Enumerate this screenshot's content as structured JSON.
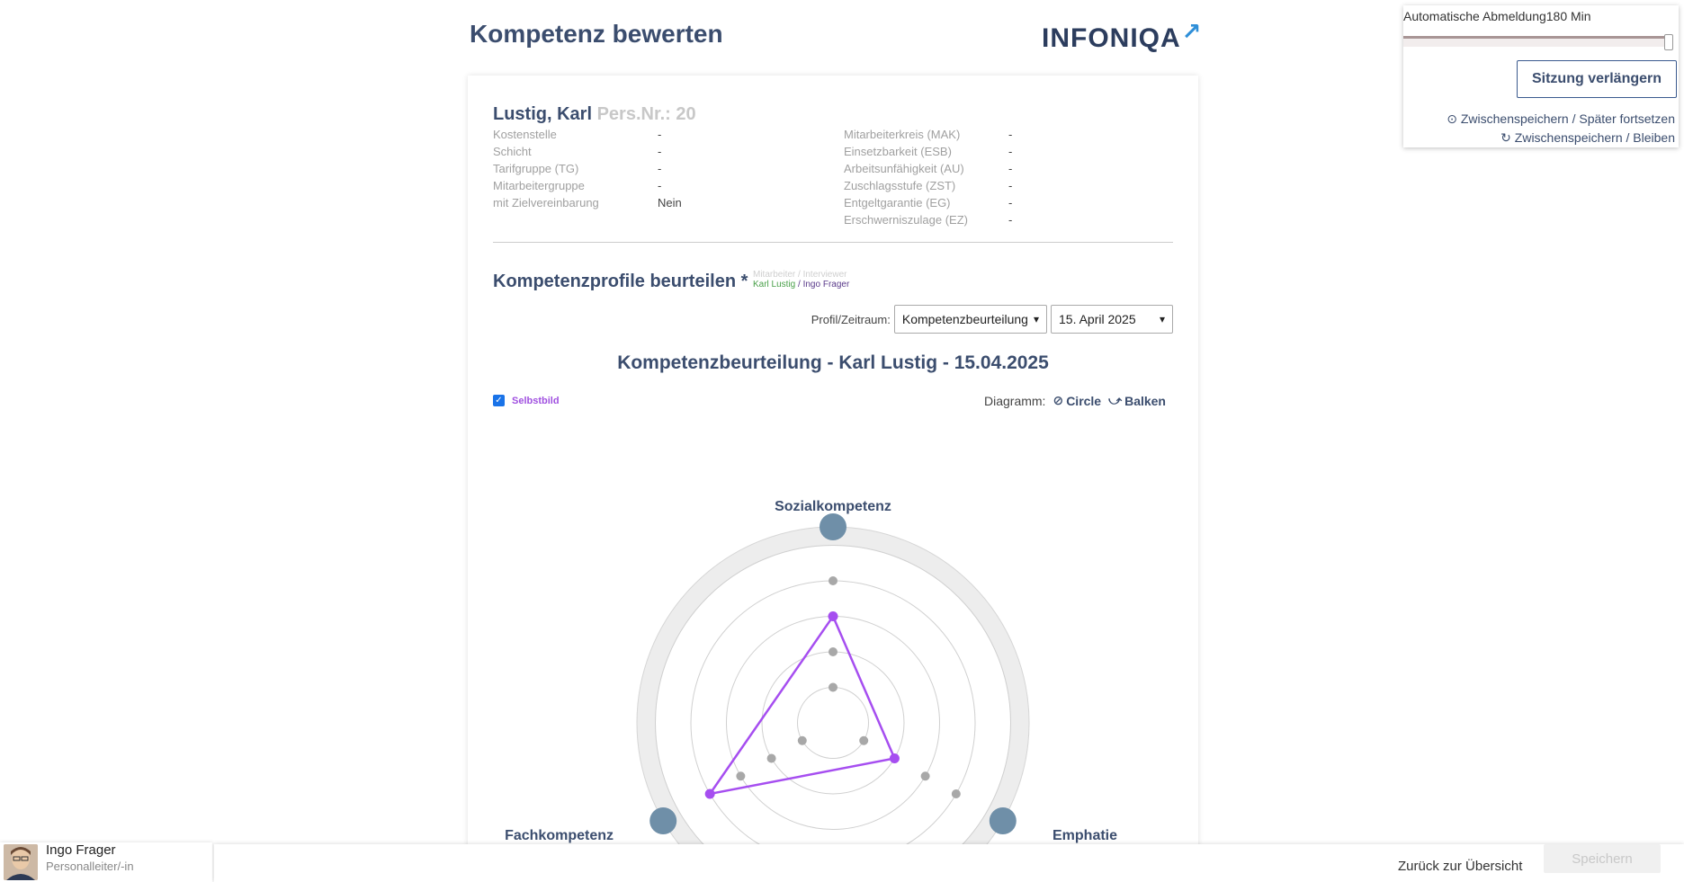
{
  "header": {
    "title": "Kompetenz bewerten",
    "logo_text": "INFONIQA",
    "logo_arrow": "↗"
  },
  "employee": {
    "name": "Lustig, Karl",
    "persnr": "Pers.Nr.: 20",
    "fields_left": [
      {
        "label": "Kostenstelle",
        "value": "-"
      },
      {
        "label": "Schicht",
        "value": "-"
      },
      {
        "label": "Tarifgruppe (TG)",
        "value": "-"
      },
      {
        "label": "Mitarbeitergruppe",
        "value": "-"
      },
      {
        "label": "mit Zielvereinbarung",
        "value": "Nein"
      }
    ],
    "fields_right": [
      {
        "label": "Mitarbeiterkreis (MAK)",
        "value": "-"
      },
      {
        "label": "Einsetzbarkeit (ESB)",
        "value": "-"
      },
      {
        "label": "Arbeitsunfähigkeit (AU)",
        "value": "-"
      },
      {
        "label": "Zuschlagsstufe (ZST)",
        "value": "-"
      },
      {
        "label": "Entgeltgarantie (EG)",
        "value": "-"
      },
      {
        "label": "Erschwerniszulage (EZ)",
        "value": "-"
      }
    ]
  },
  "profiles": {
    "title": "Kompetenzprofile beurteilen",
    "required_mark": "*",
    "legend_line1": "Mitarbeiter / Interviewer",
    "legend_employee": "Karl Lustig",
    "legend_separator": " / ",
    "legend_interviewer": "Ingo Frager",
    "profile_label": "Profil/Zeitraum:",
    "profile_select": "Kompetenzbeurteilung",
    "date_select": "15. April 2025"
  },
  "chart_header": {
    "title": "Kompetenzbeurteilung - Karl Lustig - 15.04.2025",
    "selbstbild_label": "Selbstbild",
    "selbstbild_checked": true,
    "diagramm_label": "Diagramm:",
    "option_circle": "Circle",
    "option_balken": "Balken"
  },
  "chart_data": {
    "type": "radar",
    "axes": [
      "Sozialkompetenz",
      "Emphatie",
      "Fachkompetenz"
    ],
    "levels": 5,
    "series": [
      {
        "name": "Selbstbild",
        "color": "#a64ef0",
        "values": [
          3,
          2,
          4
        ]
      }
    ]
  },
  "session": {
    "label": "Automatische Abmeldung180 Min",
    "extend_button": "Sitzung verlängern",
    "save_later": "Zwischenspeichern / Später fortsetzen",
    "save_stay": "Zwischenspeichern / Bleiben"
  },
  "footer": {
    "back_link": "Zurück zur Übersicht",
    "save_button": "Speichern"
  },
  "user": {
    "name": "Ingo Frager",
    "role": "Personalleiter/-in"
  }
}
